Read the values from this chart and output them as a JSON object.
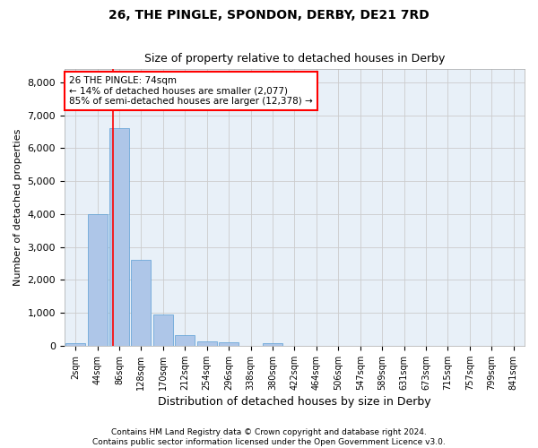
{
  "title1": "26, THE PINGLE, SPONDON, DERBY, DE21 7RD",
  "title2": "Size of property relative to detached houses in Derby",
  "xlabel": "Distribution of detached houses by size in Derby",
  "ylabel": "Number of detached properties",
  "categories": [
    "2sqm",
    "44sqm",
    "86sqm",
    "128sqm",
    "170sqm",
    "212sqm",
    "254sqm",
    "296sqm",
    "338sqm",
    "380sqm",
    "422sqm",
    "464sqm",
    "506sqm",
    "547sqm",
    "589sqm",
    "631sqm",
    "673sqm",
    "715sqm",
    "757sqm",
    "799sqm",
    "841sqm"
  ],
  "bar_heights": [
    80,
    4000,
    6600,
    2600,
    950,
    310,
    130,
    100,
    0,
    80,
    0,
    0,
    0,
    0,
    0,
    0,
    0,
    0,
    0,
    0,
    0
  ],
  "bar_color": "#aec6e8",
  "bar_edgecolor": "#5a9fd4",
  "bar_linewidth": 0.5,
  "vline_color": "red",
  "vline_linewidth": 1.2,
  "vline_x": 1.73,
  "annotation_text": "26 THE PINGLE: 74sqm\n← 14% of detached houses are smaller (2,077)\n85% of semi-detached houses are larger (12,378) →",
  "annotation_box_color": "white",
  "annotation_box_edgecolor": "red",
  "ylim": [
    0,
    8400
  ],
  "yticks": [
    0,
    1000,
    2000,
    3000,
    4000,
    5000,
    6000,
    7000,
    8000
  ],
  "grid_color": "#cccccc",
  "bg_color": "#e8f0f8",
  "footer": "Contains HM Land Registry data © Crown copyright and database right 2024.\nContains public sector information licensed under the Open Government Licence v3.0.",
  "fig_width": 6.0,
  "fig_height": 5.0,
  "title1_fontsize": 10,
  "title2_fontsize": 9,
  "ylabel_fontsize": 8,
  "xlabel_fontsize": 9,
  "ytick_fontsize": 8,
  "xtick_fontsize": 7,
  "annotation_fontsize": 7.5,
  "footer_fontsize": 6.5
}
